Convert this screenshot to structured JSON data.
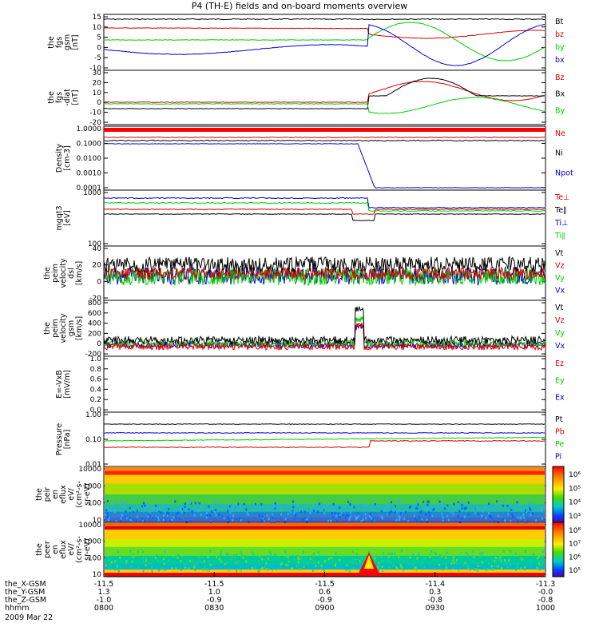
{
  "title": "P4 (TH-E) fields and on-board moments overview",
  "colors": {
    "black": "#000000",
    "red": "#d40000",
    "green": "#00cc00",
    "blue": "#0000cc"
  },
  "chart_data": [
    {
      "id": "fgs_gsm",
      "type": "line",
      "ylabel": [
        "the",
        "fgs",
        "gsm",
        "[nT]"
      ],
      "yticks": [
        "15",
        "10",
        "5",
        "0",
        "-5",
        "-10"
      ],
      "series": [
        {
          "name": "Bt",
          "color": "black"
        },
        {
          "name": "bz",
          "color": "red"
        },
        {
          "name": "by",
          "color": "green"
        },
        {
          "name": "bx",
          "color": "blue"
        }
      ]
    },
    {
      "id": "fgs_gsm_dlat",
      "type": "line",
      "ylabel": [
        "the",
        "fgs",
        "-dlat",
        "[nT]"
      ],
      "yticks": [
        "30",
        "20",
        "10",
        "0",
        "-10",
        "-20"
      ],
      "series": [
        {
          "name": "Bz",
          "color": "red"
        },
        {
          "name": "Bx",
          "color": "black"
        },
        {
          "name": "By",
          "color": "green"
        }
      ]
    },
    {
      "id": "density",
      "type": "line",
      "scale": "log",
      "ylabel": [
        "Density",
        "[cm-3]"
      ],
      "yticks": [
        "1.0000",
        "0.1000",
        "0.0100",
        "0.0010",
        "0.0001"
      ],
      "series": [
        {
          "name": "Ne",
          "color": "red"
        },
        {
          "name": "Ni",
          "color": "black"
        },
        {
          "name": "Npot",
          "color": "blue"
        }
      ]
    },
    {
      "id": "temperature",
      "type": "line",
      "scale": "log",
      "ylabel": [
        "mgqt3",
        "[eV]"
      ],
      "yticks": [
        "1000",
        "100"
      ],
      "series": [
        {
          "name": "Te⊥",
          "color": "red"
        },
        {
          "name": "Te∥",
          "color": "black"
        },
        {
          "name": "Ti⊥",
          "color": "blue"
        },
        {
          "name": "Ti∥",
          "color": "green"
        }
      ]
    },
    {
      "id": "peim_velocity_dsl",
      "type": "line",
      "ylabel": [
        "the",
        "peim",
        "velocity",
        "dsl",
        "[km/s]"
      ],
      "yticks": [
        "40",
        "20",
        "0",
        "-20"
      ],
      "series": [
        {
          "name": "Vt",
          "color": "black"
        },
        {
          "name": "Vz",
          "color": "red"
        },
        {
          "name": "Vy",
          "color": "green"
        },
        {
          "name": "Vx",
          "color": "blue"
        }
      ]
    },
    {
      "id": "peim_velocity_gsm",
      "type": "line",
      "ylabel": [
        "the",
        "peim",
        "velocity",
        "gsm",
        "[km/s]"
      ],
      "yticks": [
        "800",
        "600",
        "400",
        "200",
        "0",
        "-200"
      ],
      "series": [
        {
          "name": "Vt",
          "color": "black"
        },
        {
          "name": "Vz",
          "color": "red"
        },
        {
          "name": "Vy",
          "color": "green"
        },
        {
          "name": "Vx",
          "color": "blue"
        }
      ]
    },
    {
      "id": "e_vxb",
      "type": "line",
      "ylabel": [
        "E=-VxB",
        "[mV/m]"
      ],
      "yticks": [
        "1.0",
        "0.8",
        "0.6",
        "0.4",
        "0.2",
        "0.0"
      ],
      "series": [
        {
          "name": "Ez",
          "color": "red"
        },
        {
          "name": "Ey",
          "color": "green"
        },
        {
          "name": "Ex",
          "color": "blue"
        }
      ]
    },
    {
      "id": "pressure",
      "type": "line",
      "scale": "log",
      "ylabel": [
        "Pressure",
        "[nPa]"
      ],
      "yticks": [
        "1.00",
        "0.10",
        "0.01"
      ],
      "series": [
        {
          "name": "Pt",
          "color": "black"
        },
        {
          "name": "Pb",
          "color": "red"
        },
        {
          "name": "Pe",
          "color": "green"
        },
        {
          "name": "Pi",
          "color": "blue"
        }
      ]
    },
    {
      "id": "peir_en_eflux",
      "type": "heatmap",
      "scale": "log",
      "ylabel": [
        "the",
        "peir",
        "en",
        "eflux",
        "eV/",
        "(cm²-s-",
        "sr-eV)"
      ],
      "yticks": [
        "10000",
        "1000",
        "100",
        "10"
      ],
      "colorbar_ticks": [
        "10⁶",
        "10⁵",
        "10⁴",
        "10³"
      ]
    },
    {
      "id": "peer_en_eflux",
      "type": "heatmap",
      "scale": "log",
      "ylabel": [
        "the",
        "peer",
        "en",
        "eflux",
        "eV/",
        "(cm²-s-",
        "sr-eV)"
      ],
      "yticks": [
        "10000",
        "1000",
        "100",
        "10"
      ],
      "colorbar_ticks": [
        "10⁸",
        "10⁷",
        "10⁶",
        "10⁵"
      ]
    }
  ],
  "x_axis": {
    "rows": [
      {
        "label": "the_X-GSM",
        "values": [
          "-11.5",
          "-11.5",
          "-11.5",
          "-11.4",
          "-11.3"
        ]
      },
      {
        "label": "the_Y-GSM",
        "values": [
          "1.3",
          "1.0",
          "0.6",
          "0.3",
          "-0.0"
        ]
      },
      {
        "label": "the_Z-GSM",
        "values": [
          "-1.0",
          "-0.9",
          "-0.9",
          "-0.8",
          "-0.8"
        ]
      },
      {
        "label": "hhmm",
        "values": [
          "0800",
          "0830",
          "0900",
          "0930",
          "1000"
        ]
      }
    ],
    "date": "2009 Mar 22"
  }
}
